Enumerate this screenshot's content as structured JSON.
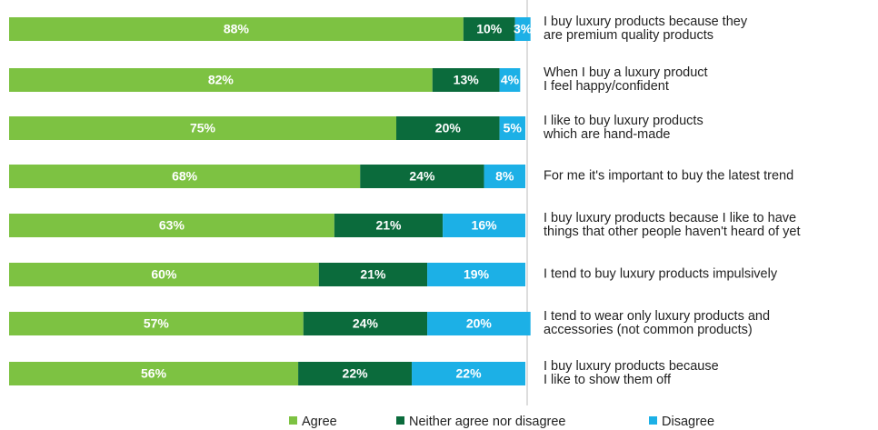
{
  "chart_data": {
    "type": "stacked-hbar",
    "categories": [
      "I buy luxury products because they\nare premium quality products",
      "When I buy a luxury product\nI feel happy/confident",
      "I like to buy luxury products\nwhich are hand-made",
      "For me it's important to buy the latest trend",
      "I buy luxury products because I like to have\nthings that other people haven't heard of yet",
      "I tend to buy luxury products impulsively",
      "I tend to wear only luxury products and\naccessories (not common products)",
      "I buy luxury products because\nI like to show them off"
    ],
    "series": [
      {
        "name": "Agree",
        "color": "#7dc242",
        "values": [
          88,
          82,
          75,
          68,
          63,
          60,
          57,
          56
        ],
        "value_labels": [
          "88%",
          "82%",
          "75%",
          "68%",
          "63%",
          "60%",
          "57%",
          "56%"
        ]
      },
      {
        "name": "Neither agree nor disagree",
        "color": "#0b6b3c",
        "values": [
          10,
          13,
          20,
          24,
          21,
          21,
          24,
          22
        ],
        "value_labels": [
          "10%",
          "13%",
          "20%",
          "24%",
          "21%",
          "21%",
          "24%",
          "22%"
        ]
      },
      {
        "name": "Disagree",
        "color": "#1cb0e6",
        "values": [
          3,
          4,
          5,
          8,
          16,
          19,
          20,
          22
        ],
        "value_labels": [
          "3%",
          "4%",
          "5%",
          "8%",
          "16%",
          "19%",
          "20%",
          "22%"
        ]
      }
    ],
    "xlim": [
      0,
      100
    ]
  }
}
